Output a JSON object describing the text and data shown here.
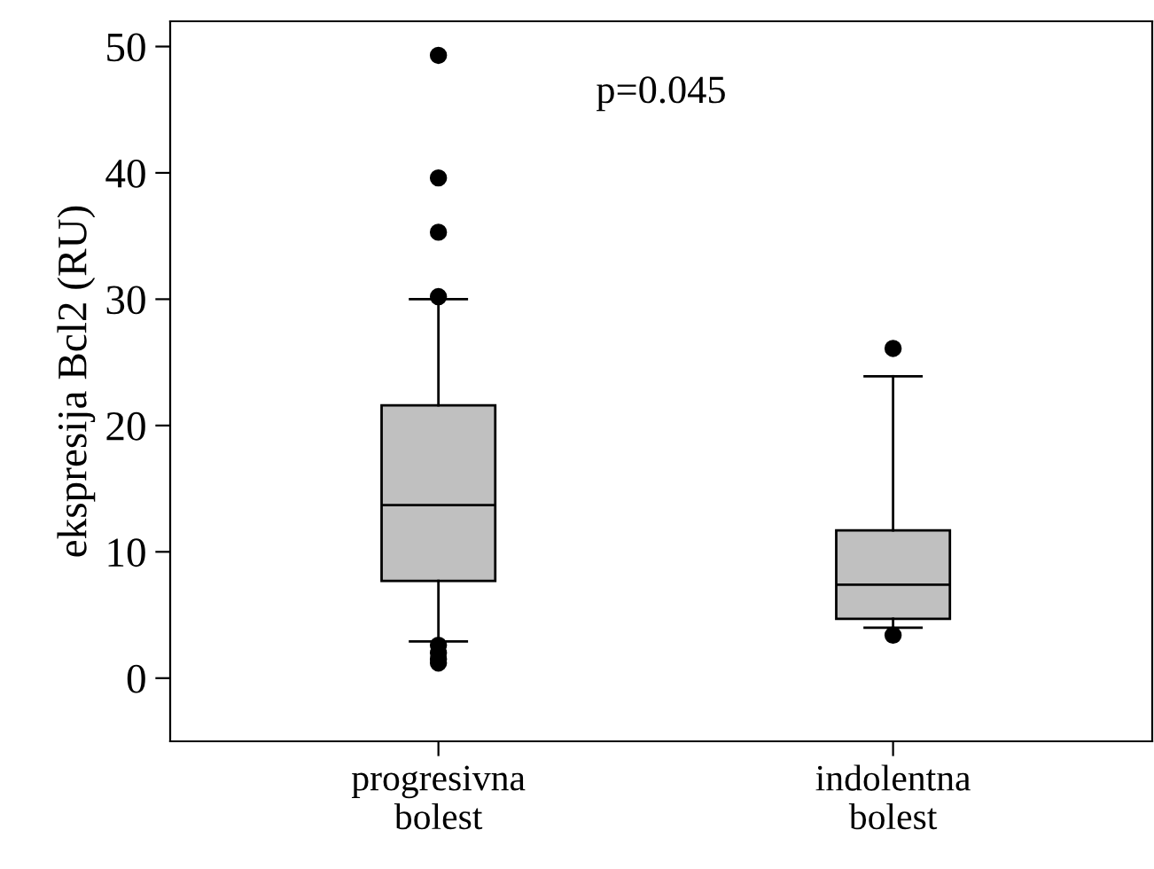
{
  "chart_data": {
    "type": "box",
    "categories": [
      "progresivna\nbolest",
      "indolentna\nbolest"
    ],
    "ylabel": "ekspresija Bcl2 (RU)",
    "annotations": [
      "p=0.045"
    ],
    "color": "#c0c0c0",
    "boxes": [
      {
        "low": 2.9,
        "q1": 7.7,
        "median": 13.7,
        "q3": 21.6,
        "high": 30,
        "outliers": [
          49.3,
          39.6,
          35.3,
          30.2,
          2.6,
          2.0,
          1.5,
          1.2
        ]
      },
      {
        "low": 4.0,
        "q1": 4.7,
        "median": 7.4,
        "q3": 11.7,
        "high": 23.9,
        "outliers": [
          26.1,
          3.4
        ]
      }
    ],
    "ylim": [
      -5,
      52
    ],
    "yticks": [
      0,
      10,
      20,
      30,
      40,
      50
    ],
    "grid": false,
    "legend": false
  }
}
